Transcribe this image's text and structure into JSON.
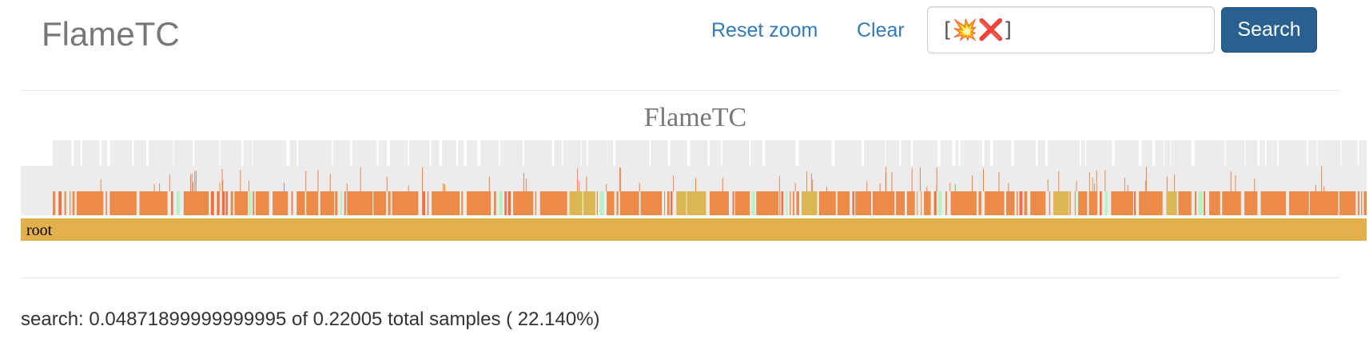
{
  "navbar": {
    "brand": "FlameTC",
    "reset_zoom_label": "Reset zoom",
    "clear_label": "Clear",
    "search_value": "[💥❌]",
    "search_button_label": "Search"
  },
  "flamegraph": {
    "title": "FlameTC",
    "root_label": "root",
    "colors": {
      "root": "#e3b04e",
      "background_frame": "#ececec",
      "function_frame_orange": "#ec8a4a",
      "function_frame_red": "#f0703f",
      "function_frame_gold": "#dcb653",
      "function_frame_green": "#b8f2c4",
      "title_text": "#777777"
    }
  },
  "status": {
    "text": "search: 0.04871899999999995 of 0.22005 total samples ( 22.140%)"
  }
}
